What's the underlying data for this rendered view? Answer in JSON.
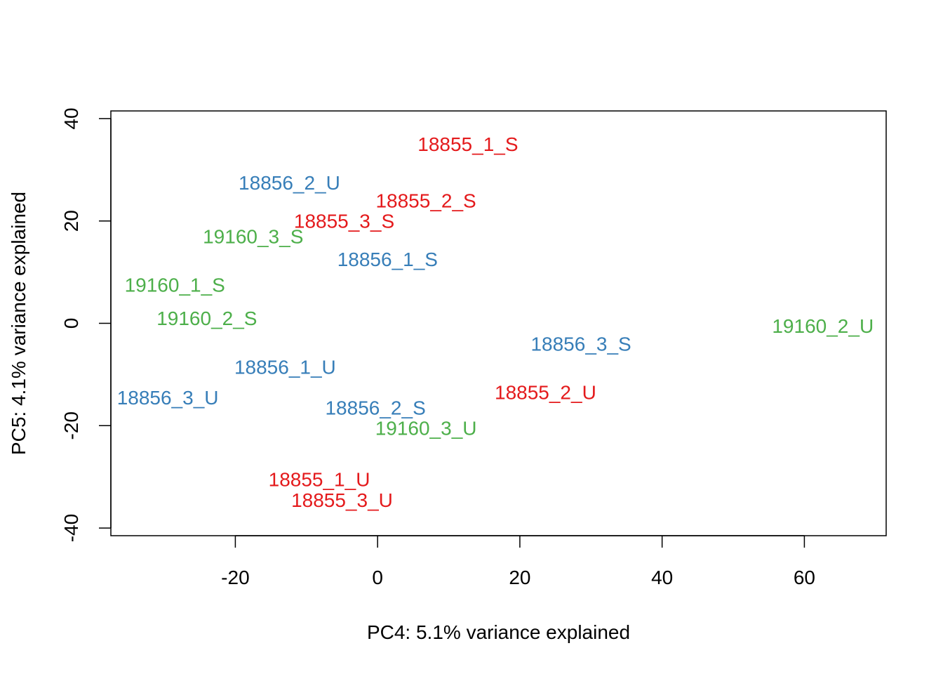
{
  "chart_data": {
    "type": "scatter",
    "title": "",
    "xlabel": "PC4: 5.1% variance explained",
    "ylabel": "PC5: 4.1% variance explained",
    "xlim": [
      -37.5,
      71.5
    ],
    "ylim": [
      -41.5,
      41.5
    ],
    "xticks": [
      -20,
      0,
      20,
      40,
      60
    ],
    "yticks": [
      -40,
      -20,
      0,
      20,
      40
    ],
    "xtick_labels": [
      "-20",
      "0",
      "20",
      "40",
      "60"
    ],
    "ytick_labels": [
      "-40",
      "-20",
      "0",
      "20",
      "40"
    ],
    "grid": false,
    "colors": {
      "18855": "#e41a1c",
      "18856": "#377eb8",
      "19160": "#4daf4a"
    },
    "points": [
      {
        "label": "18855_1_S",
        "x": 12.7,
        "y": 35.0,
        "group": "18855"
      },
      {
        "label": "18856_2_U",
        "x": -12.4,
        "y": 27.5,
        "group": "18856"
      },
      {
        "label": "18855_2_S",
        "x": 6.8,
        "y": 24.0,
        "group": "18855"
      },
      {
        "label": "18855_3_S",
        "x": -4.7,
        "y": 20.0,
        "group": "18855"
      },
      {
        "label": "19160_3_S",
        "x": -17.5,
        "y": 17.0,
        "group": "19160"
      },
      {
        "label": "18856_1_S",
        "x": 1.4,
        "y": 12.5,
        "group": "18856"
      },
      {
        "label": "19160_1_S",
        "x": -28.5,
        "y": 7.5,
        "group": "19160"
      },
      {
        "label": "19160_2_S",
        "x": -24.0,
        "y": 1.0,
        "group": "19160"
      },
      {
        "label": "18856_3_S",
        "x": 28.6,
        "y": -4.0,
        "group": "18856"
      },
      {
        "label": "19160_2_U",
        "x": 62.6,
        "y": -0.5,
        "group": "19160"
      },
      {
        "label": "18856_1_U",
        "x": -13.0,
        "y": -8.5,
        "group": "18856"
      },
      {
        "label": "18856_3_U",
        "x": -29.5,
        "y": -14.5,
        "group": "18856"
      },
      {
        "label": "18855_2_U",
        "x": 23.6,
        "y": -13.5,
        "group": "18855"
      },
      {
        "label": "18856_2_S",
        "x": -0.3,
        "y": -16.5,
        "group": "18856"
      },
      {
        "label": "19160_3_U",
        "x": 6.8,
        "y": -20.5,
        "group": "19160"
      },
      {
        "label": "18855_1_U",
        "x": -8.2,
        "y": -30.5,
        "group": "18855"
      },
      {
        "label": "18855_3_U",
        "x": -5.0,
        "y": -34.5,
        "group": "18855"
      }
    ]
  }
}
